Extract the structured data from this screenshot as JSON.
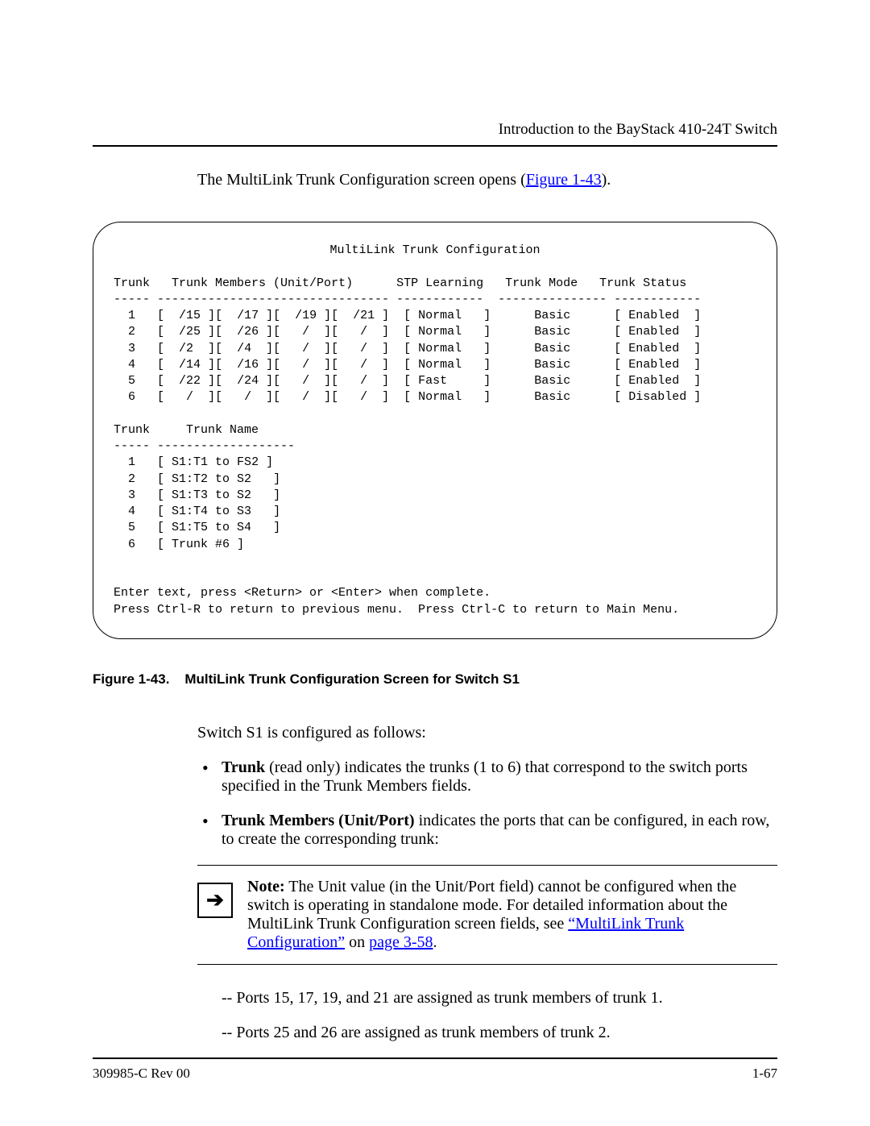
{
  "header": {
    "title": "Introduction to the BayStack 410-24T Switch"
  },
  "intro": {
    "prefix": "The MultiLink Trunk Configuration screen opens (",
    "link": "Figure 1-43",
    "suffix": ")."
  },
  "terminal": {
    "title": "MultiLink Trunk Configuration",
    "col_trunk": "Trunk",
    "col_members": "Trunk Members (Unit/Port)",
    "col_stp": "STP Learning",
    "col_mode": "Trunk Mode",
    "col_status": "Trunk Status",
    "rows": [
      {
        "n": "1",
        "m1": "/15",
        "m2": "/17",
        "m3": "/19",
        "m4": "/21",
        "stp": "Normal",
        "mode": "Basic",
        "st": "Enabled "
      },
      {
        "n": "2",
        "m1": "/25",
        "m2": "/26",
        "m3": " / ",
        "m4": " / ",
        "stp": "Normal",
        "mode": "Basic",
        "st": "Enabled "
      },
      {
        "n": "3",
        "m1": "/2 ",
        "m2": "/4 ",
        "m3": " / ",
        "m4": " / ",
        "stp": "Normal",
        "mode": "Basic",
        "st": "Enabled "
      },
      {
        "n": "4",
        "m1": "/14",
        "m2": "/16",
        "m3": " / ",
        "m4": " / ",
        "stp": "Normal",
        "mode": "Basic",
        "st": "Enabled "
      },
      {
        "n": "5",
        "m1": "/22",
        "m2": "/24",
        "m3": " / ",
        "m4": " / ",
        "stp": "Fast  ",
        "mode": "Basic",
        "st": "Enabled "
      },
      {
        "n": "6",
        "m1": " / ",
        "m2": " / ",
        "m3": " / ",
        "m4": " / ",
        "stp": "Normal",
        "mode": "Basic",
        "st": "Disabled"
      }
    ],
    "col_trunk2": "Trunk",
    "col_name": "Trunk Name",
    "names": [
      {
        "n": "1",
        "name": "S1:T1 to FS2"
      },
      {
        "n": "2",
        "name": "S1:T2 to S2 "
      },
      {
        "n": "3",
        "name": "S1:T3 to S2 "
      },
      {
        "n": "4",
        "name": "S1:T4 to S3 "
      },
      {
        "n": "5",
        "name": "S1:T5 to S4 "
      },
      {
        "n": "6",
        "name": "Trunk #6"
      }
    ],
    "footer1": "Enter text, press <Return> or <Enter> when complete.",
    "footer2": "Press Ctrl-R to return to previous menu.  Press Ctrl-C to return to Main Menu."
  },
  "caption": {
    "fig": "Figure 1-43.",
    "text": "MultiLink Trunk Configuration Screen for Switch S1"
  },
  "body1": "Switch S1 is configured as follows:",
  "bullets": [
    {
      "bold": "Trunk",
      "rest": " (read only) indicates the trunks (1 to 6) that correspond to the switch ports specified in the Trunk Members fields."
    },
    {
      "bold": "Trunk Members (Unit/Port)",
      "rest": " indicates the ports that can be configured, in each row, to create the corresponding trunk:"
    }
  ],
  "note": {
    "bold": "Note:",
    "text1": " The Unit value (in the Unit/Port field) cannot be configured when the switch is operating in standalone mode. For detailed information about the MultiLink Trunk Configuration screen fields, see ",
    "link1": "“MultiLink Trunk Configuration”",
    "mid": " on ",
    "link2": "page 3-58",
    "end": "."
  },
  "post": [
    "-- Ports 15, 17, 19, and 21 are assigned as trunk members of trunk 1.",
    "-- Ports 25 and 26 are assigned as trunk members of trunk 2."
  ],
  "footer": {
    "left": "309985-C Rev 00",
    "right": "1-67"
  }
}
